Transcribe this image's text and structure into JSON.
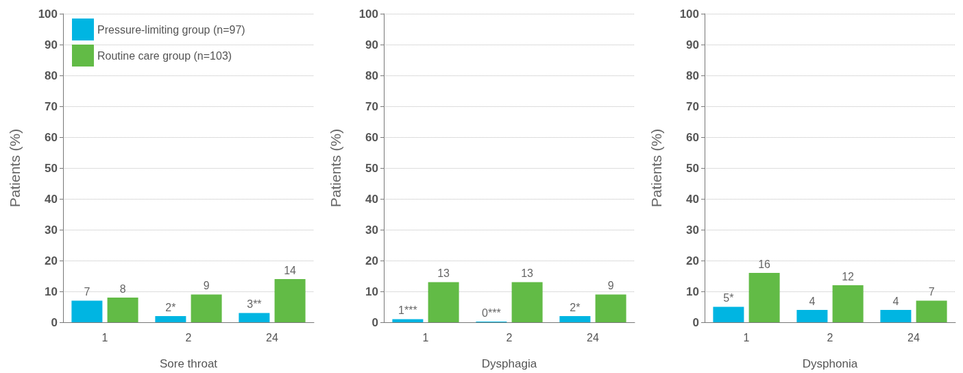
{
  "chart_data": [
    {
      "type": "bar",
      "categories": [
        "1",
        "2",
        "24"
      ],
      "xlabel": "Sore throat",
      "ylabel": "Patients (%)",
      "ylim": [
        0,
        100
      ],
      "yticks": [
        0,
        10,
        20,
        30,
        40,
        50,
        60,
        70,
        80,
        90,
        100
      ],
      "grid": "y",
      "legend": "top left",
      "series": [
        {
          "name": "Pressure-limiting group (n=97)",
          "color": "#00b5e2",
          "values": [
            7,
            2,
            3
          ],
          "value_labels": [
            "7",
            "2*",
            "3**"
          ]
        },
        {
          "name": "Routine care group (n=103)",
          "color": "#62bb46",
          "values": [
            8,
            9,
            14
          ],
          "value_labels": [
            "8",
            "9",
            "14"
          ]
        }
      ]
    },
    {
      "type": "bar",
      "categories": [
        "1",
        "2",
        "24"
      ],
      "xlabel": "Dysphagia",
      "ylabel": "Patients (%)",
      "ylim": [
        0,
        100
      ],
      "yticks": [
        0,
        10,
        20,
        30,
        40,
        50,
        60,
        70,
        80,
        90,
        100
      ],
      "grid": "y",
      "series": [
        {
          "color": "#00b5e2",
          "values": [
            1,
            0,
            2
          ],
          "value_labels": [
            "1***",
            "0***",
            "2*"
          ]
        },
        {
          "color": "#62bb46",
          "values": [
            13,
            13,
            9
          ],
          "value_labels": [
            "13",
            "13",
            "9"
          ]
        }
      ]
    },
    {
      "type": "bar",
      "categories": [
        "1",
        "2",
        "24"
      ],
      "xlabel": "Dysphonia",
      "ylabel": "Patients (%)",
      "ylim": [
        0,
        100
      ],
      "yticks": [
        0,
        10,
        20,
        30,
        40,
        50,
        60,
        70,
        80,
        90,
        100
      ],
      "grid": "y",
      "series": [
        {
          "color": "#00b5e2",
          "values": [
            5,
            4,
            4
          ],
          "value_labels": [
            "5*",
            "4",
            "4"
          ]
        },
        {
          "color": "#62bb46",
          "values": [
            16,
            12,
            7
          ],
          "value_labels": [
            "16",
            "12",
            "7"
          ]
        }
      ]
    }
  ]
}
